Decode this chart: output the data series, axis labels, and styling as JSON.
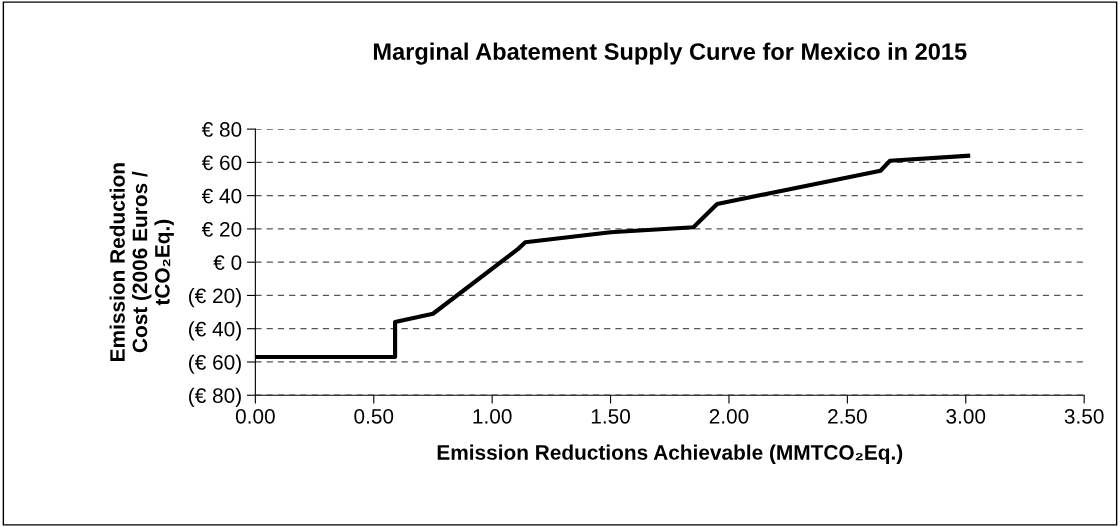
{
  "chart_data": {
    "type": "line",
    "title": "Marginal Abatement Supply Curve for Mexico in 2015",
    "xlabel": "Emission Reductions Achievable (MMTCO₂Eq.)",
    "ylabel": "Emission Reduction\nCost (2006 Euros /\ntCO₂Eq.)",
    "x": [
      0,
      0.59,
      0.59,
      0.75,
      1.11,
      1.14,
      1.5,
      1.85,
      1.95,
      2.64,
      2.68,
      3.01
    ],
    "series": [
      {
        "color": "#000000",
        "values": [
          -57,
          -57,
          -36,
          -31,
          8,
          12,
          18,
          21,
          35,
          55,
          61,
          64
        ]
      }
    ],
    "xlim": [
      0,
      3.5
    ],
    "xticks": [
      {
        "value": 0,
        "label": "0.00"
      },
      {
        "value": 0.5,
        "label": "0.50"
      },
      {
        "value": 1,
        "label": "1.00"
      },
      {
        "value": 1.5,
        "label": "1.50"
      },
      {
        "value": 2,
        "label": "2.00"
      },
      {
        "value": 2.5,
        "label": "2.50"
      },
      {
        "value": 3,
        "label": "3.00"
      },
      {
        "value": 3.5,
        "label": "3.50"
      }
    ],
    "ylim": [
      -80,
      80
    ],
    "yticks": [
      {
        "value": -80,
        "label": "(€ 80)"
      },
      {
        "value": -60,
        "label": "(€ 60)"
      },
      {
        "value": -40,
        "label": "(€ 40)"
      },
      {
        "value": -20,
        "label": "(€ 20)"
      },
      {
        "value": 0,
        "label": "€ 0"
      },
      {
        "value": 20,
        "label": "€ 20"
      },
      {
        "value": 40,
        "label": "€ 40"
      },
      {
        "value": 60,
        "label": "€ 60"
      },
      {
        "value": 80,
        "label": "€ 80"
      }
    ],
    "grid": "y",
    "marker": "none",
    "line_style": "solid",
    "legend": false
  }
}
